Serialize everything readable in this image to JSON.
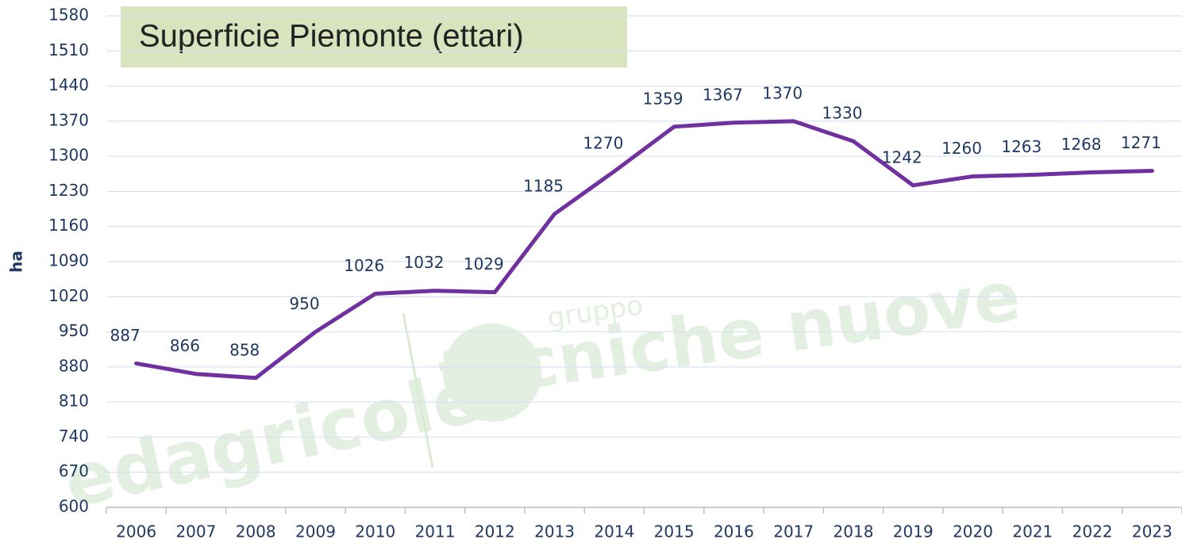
{
  "chart_data": {
    "type": "line",
    "title": "Superficie Piemonte (ettari)",
    "y_label": "ha",
    "categories": [
      "2006",
      "2007",
      "2008",
      "2009",
      "2010",
      "2011",
      "2012",
      "2013",
      "2014",
      "2015",
      "2016",
      "2017",
      "2018",
      "2019",
      "2020",
      "2021",
      "2022",
      "2023"
    ],
    "series": [
      {
        "name": "Superficie",
        "color": "#7030a0",
        "values": [
          887,
          866,
          858,
          950,
          1026,
          1032,
          1029,
          1185,
          1270,
          1359,
          1367,
          1370,
          1330,
          1242,
          1260,
          1263,
          1268,
          1271
        ]
      }
    ],
    "ylim": [
      600,
      1580
    ],
    "yticks": [
      600,
      670,
      740,
      810,
      880,
      950,
      1020,
      1090,
      1160,
      1230,
      1300,
      1370,
      1440,
      1510,
      1580
    ],
    "grid": true,
    "data_labels": true,
    "watermarks": [
      "edagricole",
      "gruppo",
      "tecniche nuove"
    ]
  }
}
